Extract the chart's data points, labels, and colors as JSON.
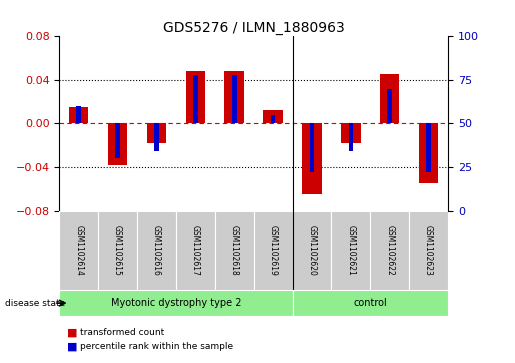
{
  "title": "GDS5276 / ILMN_1880963",
  "samples": [
    "GSM1102614",
    "GSM1102615",
    "GSM1102616",
    "GSM1102617",
    "GSM1102618",
    "GSM1102619",
    "GSM1102620",
    "GSM1102621",
    "GSM1102622",
    "GSM1102623"
  ],
  "red_values": [
    0.015,
    -0.038,
    -0.018,
    0.048,
    0.048,
    0.012,
    -0.065,
    -0.018,
    0.045,
    -0.055
  ],
  "blue_percentiles": [
    60,
    30,
    34,
    78,
    78,
    55,
    22,
    34,
    70,
    22
  ],
  "groups": [
    {
      "label": "Myotonic dystrophy type 2",
      "start": 0,
      "end": 6,
      "color": "#90EE90"
    },
    {
      "label": "control",
      "start": 6,
      "end": 10,
      "color": "#90EE90"
    }
  ],
  "group_boundary": 6,
  "ylim": [
    -0.08,
    0.08
  ],
  "yticks_left": [
    -0.08,
    -0.04,
    0,
    0.04,
    0.08
  ],
  "yticks_right": [
    0,
    25,
    50,
    75,
    100
  ],
  "red_color": "#CC0000",
  "blue_color": "#0000CC",
  "red_bar_width": 0.5,
  "blue_bar_width": 0.12,
  "bg_color": "#FFFFFF",
  "label_color_red": "#CC0000",
  "label_color_blue": "#0000BB",
  "disease_state_label": "disease state",
  "legend_red": "transformed count",
  "legend_blue": "percentile rank within the sample",
  "header_bg": "#CCCCCC",
  "group_bg": "#90EE90",
  "title_fontsize": 10
}
